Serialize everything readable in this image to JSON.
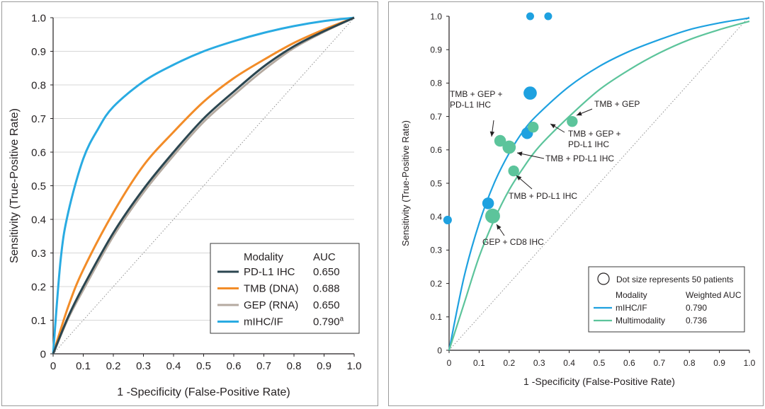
{
  "chart_data": [
    {
      "type": "line",
      "xlabel": "1 -Specificity (False-Positive Rate)",
      "ylabel": "Sensitivity (True-Positive Rate)",
      "xlim": [
        0,
        1
      ],
      "ylim": [
        0,
        1
      ],
      "x_ticks": [
        "0",
        "0.1",
        "0.2",
        "0.3",
        "0.4",
        "0.5",
        "0.6",
        "0.7",
        "0.8",
        "0.9",
        "1.0"
      ],
      "y_ticks": [
        "0",
        "0.1",
        "0.2",
        "0.3",
        "0.4",
        "0.5",
        "0.6",
        "0.7",
        "0.8",
        "0.9",
        "1.0"
      ],
      "grid": "horizontal",
      "legend_position": "bottom-right",
      "legend_header": {
        "col1": "Modality",
        "col2": "AUC"
      },
      "reference_line": "diagonal dotted",
      "series": [
        {
          "name": "PD-L1 IHC",
          "auc": "0.650",
          "color": "#2b4650",
          "x": [
            0,
            0.05,
            0.1,
            0.2,
            0.3,
            0.4,
            0.5,
            0.6,
            0.7,
            0.8,
            0.9,
            1.0
          ],
          "y": [
            0,
            0.11,
            0.2,
            0.36,
            0.49,
            0.6,
            0.7,
            0.78,
            0.855,
            0.915,
            0.96,
            1.0
          ]
        },
        {
          "name": "TMB (DNA)",
          "auc": "0.688",
          "color": "#f28c28",
          "x": [
            0,
            0.05,
            0.1,
            0.2,
            0.3,
            0.4,
            0.5,
            0.6,
            0.7,
            0.8,
            0.9,
            1.0
          ],
          "y": [
            0,
            0.14,
            0.25,
            0.42,
            0.56,
            0.66,
            0.75,
            0.82,
            0.875,
            0.925,
            0.965,
            1.0
          ]
        },
        {
          "name": "GEP (RNA)",
          "auc": "0.650",
          "color": "#b5aaa0",
          "x": [
            0,
            0.05,
            0.1,
            0.2,
            0.3,
            0.4,
            0.5,
            0.6,
            0.7,
            0.8,
            0.9,
            1.0
          ],
          "y": [
            0,
            0.105,
            0.19,
            0.35,
            0.48,
            0.59,
            0.69,
            0.77,
            0.845,
            0.91,
            0.958,
            1.0
          ]
        },
        {
          "name": "mIHC/IF",
          "auc": "0.790",
          "auc_sup": "a",
          "color": "#29abe2",
          "x": [
            0,
            0.025,
            0.05,
            0.1,
            0.15,
            0.2,
            0.3,
            0.4,
            0.5,
            0.6,
            0.7,
            0.8,
            0.9,
            1.0
          ],
          "y": [
            0,
            0.28,
            0.42,
            0.58,
            0.67,
            0.735,
            0.81,
            0.86,
            0.9,
            0.93,
            0.955,
            0.975,
            0.99,
            1.0
          ]
        }
      ]
    },
    {
      "type": "scatter",
      "xlabel": "1 -Specificity (False-Positive Rate)",
      "ylabel": "Sensitivity (True-Positive Rate)",
      "xlim": [
        0,
        1
      ],
      "ylim": [
        0,
        1
      ],
      "x_ticks": [
        "0",
        "0.1",
        "0.2",
        "0.3",
        "0.4",
        "0.5",
        "0.6",
        "0.7",
        "0.8",
        "0.9",
        "1.0"
      ],
      "y_ticks": [
        "0",
        "0.1",
        "0.2",
        "0.3",
        "0.4",
        "0.5",
        "0.6",
        "0.7",
        "0.8",
        "0.9",
        "1.0"
      ],
      "grid": "none",
      "legend_position": "bottom-right",
      "legend_note": "Dot size represents 50 patients",
      "legend_header": {
        "col1": "Modality",
        "col2": "Weighted AUC"
      },
      "reference_line": "diagonal dotted",
      "curves": [
        {
          "name": "mIHC/IF",
          "auc": "0.790",
          "color": "#1ea1e0",
          "x": [
            0,
            0.05,
            0.1,
            0.15,
            0.2,
            0.25,
            0.3,
            0.4,
            0.5,
            0.6,
            0.7,
            0.8,
            0.9,
            1.0
          ],
          "y": [
            0,
            0.22,
            0.38,
            0.5,
            0.59,
            0.66,
            0.71,
            0.79,
            0.85,
            0.895,
            0.93,
            0.96,
            0.98,
            0.995
          ]
        },
        {
          "name": "Multimodality",
          "auc": "0.736",
          "color": "#5cc49b",
          "x": [
            0,
            0.05,
            0.1,
            0.15,
            0.2,
            0.25,
            0.3,
            0.4,
            0.5,
            0.6,
            0.7,
            0.8,
            0.9,
            1.0
          ],
          "y": [
            0,
            0.14,
            0.28,
            0.39,
            0.48,
            0.55,
            0.61,
            0.7,
            0.78,
            0.84,
            0.89,
            0.93,
            0.96,
            0.985
          ]
        }
      ],
      "points": [
        {
          "group": "mIHC/IF",
          "x": 0.27,
          "y": 1.0,
          "size": 1.0
        },
        {
          "group": "mIHC/IF",
          "x": 0.33,
          "y": 1.0,
          "size": 1.0
        },
        {
          "group": "mIHC/IF",
          "x": -0.005,
          "y": 0.39,
          "size": 1.1
        },
        {
          "group": "mIHC/IF",
          "x": 0.27,
          "y": 0.77,
          "size": 1.7
        },
        {
          "group": "mIHC/IF",
          "x": 0.26,
          "y": 0.65,
          "size": 1.5
        },
        {
          "group": "mIHC/IF",
          "x": 0.13,
          "y": 0.44,
          "size": 1.5
        },
        {
          "group": "Multimodality",
          "x": 0.41,
          "y": 0.685,
          "size": 1.4
        },
        {
          "group": "Multimodality",
          "x": 0.28,
          "y": 0.668,
          "size": 1.4
        },
        {
          "group": "Multimodality",
          "x": 0.17,
          "y": 0.627,
          "size": 1.5
        },
        {
          "group": "Multimodality",
          "x": 0.2,
          "y": 0.608,
          "size": 1.7
        },
        {
          "group": "Multimodality",
          "x": 0.215,
          "y": 0.537,
          "size": 1.4
        },
        {
          "group": "Multimodality",
          "x": 0.145,
          "y": 0.402,
          "size": 1.9
        }
      ],
      "annotations": [
        {
          "lines": [
            "TMB + GEP +",
            "PD-L1 IHC"
          ]
        },
        {
          "lines": [
            "TMB + GEP"
          ]
        },
        {
          "lines": [
            "TMB + GEP +",
            "PD-L1 IHC"
          ]
        },
        {
          "lines": [
            "TMB + PD-L1 IHC"
          ]
        },
        {
          "lines": [
            "TMB + PD-L1 IHC"
          ]
        },
        {
          "lines": [
            "GEP + CD8 IHC"
          ]
        }
      ]
    }
  ]
}
